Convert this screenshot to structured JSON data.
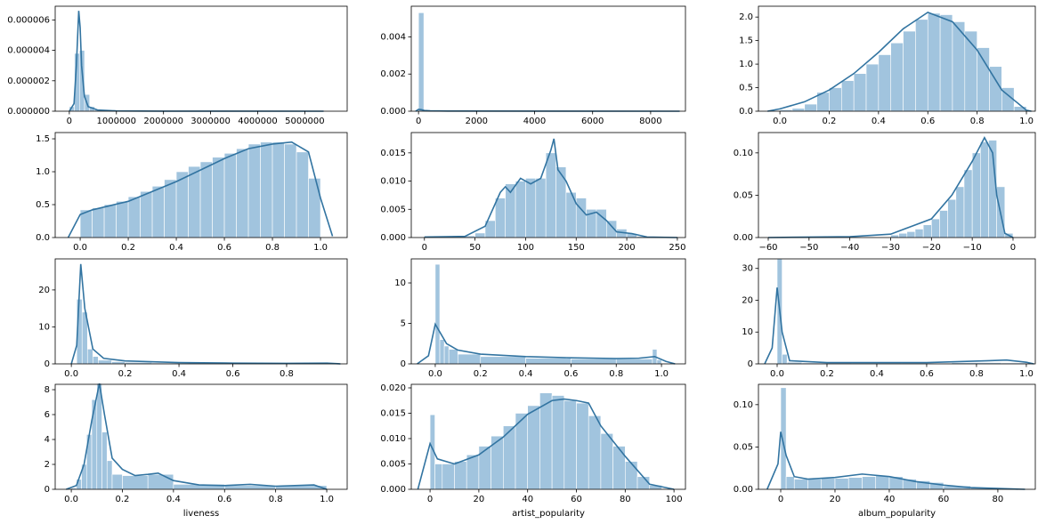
{
  "chart_data": [
    {
      "type": "histogram",
      "color": "#a1c4de",
      "line_color": "#3274a1",
      "bins": [
        0,
        108000,
        216000,
        324000,
        432000,
        540000,
        648000,
        756000,
        864000,
        972000,
        1080000
      ],
      "values": [
        3e-07,
        3.8e-06,
        4e-06,
        1.1e-06,
        3e-07,
        1e-07,
        5e-08,
        3e-08,
        2e-08,
        1e-08
      ],
      "kde_x": [
        0,
        100000,
        150000,
        200000,
        230000,
        260000,
        320000,
        400000,
        600000,
        1000000,
        2000000,
        5400000
      ],
      "kde_values": [
        0,
        5e-07,
        3e-06,
        6.6e-06,
        5.5e-06,
        3e-06,
        1e-06,
        3e-07,
        8e-08,
        2e-08,
        5e-09,
        0
      ],
      "xlim": [
        -300000,
        5900000
      ],
      "ylim": [
        0,
        6.9e-06
      ],
      "xticks": [
        0,
        1000000,
        2000000,
        3000000,
        4000000,
        5000000
      ],
      "yticks": [
        {
          "value": 0,
          "label": "0.000000"
        },
        {
          "value": 2e-06,
          "label": "0.000002"
        },
        {
          "value": 4e-06,
          "label": "0.000004"
        },
        {
          "value": 6e-06,
          "label": "0.000006"
        }
      ]
    },
    {
      "type": "histogram",
      "color": "#a1c4de",
      "line_color": "#3274a1",
      "bins": [
        0,
        184,
        368,
        552,
        736,
        920
      ],
      "values": [
        0.0053,
        3e-05,
        1e-05,
        5e-06,
        3e-06
      ],
      "kde_x": [
        -100,
        0,
        100,
        200,
        400,
        1000,
        9000
      ],
      "kde_values": [
        0,
        0.0001,
        8e-05,
        4e-05,
        2e-05,
        1e-05,
        0
      ],
      "xlim": [
        -250,
        9200
      ],
      "ylim": [
        0,
        0.00565
      ],
      "xticks": [
        0,
        2000,
        4000,
        6000,
        8000
      ],
      "yticks": [
        {
          "value": 0,
          "label": "0.000"
        },
        0.002,
        0.004
      ]
    },
    {
      "type": "histogram",
      "color": "#a1c4de",
      "line_color": "#3274a1",
      "bins": [
        0,
        0.05,
        0.1,
        0.15,
        0.2,
        0.25,
        0.3,
        0.35,
        0.4,
        0.45,
        0.5,
        0.55,
        0.6,
        0.65,
        0.7,
        0.75,
        0.8,
        0.85,
        0.9,
        0.95,
        1.0
      ],
      "values": [
        0.03,
        0.06,
        0.15,
        0.4,
        0.5,
        0.65,
        0.8,
        1.0,
        1.2,
        1.45,
        1.7,
        1.95,
        2.08,
        2.05,
        1.9,
        1.7,
        1.35,
        0.95,
        0.5,
        0.1
      ],
      "kde_x": [
        -0.05,
        0,
        0.1,
        0.2,
        0.3,
        0.4,
        0.5,
        0.6,
        0.7,
        0.8,
        0.9,
        1.0,
        1.02
      ],
      "kde_values": [
        0,
        0.05,
        0.2,
        0.45,
        0.8,
        1.25,
        1.75,
        2.1,
        1.9,
        1.3,
        0.45,
        0.02,
        0
      ],
      "xlim": [
        -0.087,
        1.036
      ],
      "ylim": [
        0,
        2.23
      ],
      "xticks": [
        {
          "value": 0,
          "label": "0.0"
        },
        0.2,
        0.4,
        0.6,
        0.8,
        {
          "value": 1,
          "label": "1.0"
        }
      ],
      "yticks": [
        {
          "value": 0,
          "label": "0.0"
        },
        0.5,
        {
          "value": 1,
          "label": "1.0"
        },
        1.5,
        {
          "value": 2,
          "label": "2.0"
        }
      ]
    },
    {
      "type": "histogram",
      "color": "#a1c4de",
      "line_color": "#3274a1",
      "bins": [
        0,
        0.05,
        0.1,
        0.15,
        0.2,
        0.25,
        0.3,
        0.35,
        0.4,
        0.45,
        0.5,
        0.55,
        0.6,
        0.65,
        0.7,
        0.75,
        0.8,
        0.85,
        0.9,
        0.95,
        1.0
      ],
      "values": [
        0.42,
        0.45,
        0.5,
        0.55,
        0.62,
        0.7,
        0.78,
        0.88,
        1.0,
        1.08,
        1.15,
        1.22,
        1.28,
        1.35,
        1.42,
        1.45,
        1.45,
        1.42,
        1.3,
        0.9
      ],
      "kde_x": [
        -0.05,
        0,
        0.05,
        0.2,
        0.4,
        0.6,
        0.7,
        0.8,
        0.88,
        0.95,
        1.0,
        1.05
      ],
      "kde_values": [
        0,
        0.35,
        0.42,
        0.55,
        0.85,
        1.2,
        1.35,
        1.42,
        1.45,
        1.3,
        0.6,
        0.02
      ],
      "xlim": [
        -0.104,
        1.111
      ],
      "ylim": [
        0,
        1.595
      ],
      "xticks": [
        {
          "value": 0,
          "label": "0.0"
        },
        0.2,
        0.4,
        0.6,
        0.8,
        {
          "value": 1,
          "label": "1.0"
        }
      ],
      "yticks": [
        {
          "value": 0,
          "label": "0.0"
        },
        0.5,
        {
          "value": 1,
          "label": "1.0"
        },
        1.5
      ]
    },
    {
      "type": "histogram",
      "color": "#a1c4de",
      "line_color": "#3274a1",
      "bins": [
        40,
        50,
        60,
        70,
        80,
        90,
        100,
        110,
        120,
        130,
        140,
        150,
        160,
        170,
        180,
        190,
        200,
        210,
        220
      ],
      "values": [
        0.0003,
        0.0008,
        0.003,
        0.007,
        0.0095,
        0.01,
        0.0105,
        0.0105,
        0.015,
        0.0125,
        0.008,
        0.007,
        0.005,
        0.005,
        0.003,
        0.0015,
        0.0007,
        0.0002
      ],
      "kde_x": [
        0,
        40,
        60,
        75,
        80,
        85,
        95,
        105,
        115,
        125,
        128,
        132,
        140,
        150,
        160,
        170,
        180,
        190,
        205,
        220,
        250
      ],
      "kde_values": [
        0.0001,
        0.0002,
        0.002,
        0.008,
        0.009,
        0.008,
        0.0105,
        0.0095,
        0.0105,
        0.0155,
        0.0175,
        0.012,
        0.01,
        0.006,
        0.004,
        0.0045,
        0.003,
        0.001,
        0.0007,
        0.0001,
        0
      ],
      "xlim": [
        -13,
        258
      ],
      "ylim": [
        0,
        0.0186
      ],
      "xticks": [
        0,
        50,
        100,
        150,
        200,
        250
      ],
      "yticks": [
        {
          "value": 0,
          "label": "0.000"
        },
        0.005,
        {
          "value": 0.01,
          "label": "0.010"
        },
        0.015
      ]
    },
    {
      "type": "histogram",
      "color": "#a1c4de",
      "line_color": "#3274a1",
      "bins": [
        -30,
        -28,
        -26,
        -24,
        -22,
        -20,
        -18,
        -16,
        -14,
        -12,
        -10,
        -8,
        -6,
        -4,
        -2,
        0
      ],
      "values": [
        0.003,
        0.005,
        0.007,
        0.01,
        0.015,
        0.022,
        0.032,
        0.045,
        0.06,
        0.08,
        0.1,
        0.113,
        0.115,
        0.06,
        0.005
      ],
      "kde_x": [
        -60,
        -40,
        -30,
        -20,
        -15,
        -10,
        -7,
        -5,
        -4,
        -2,
        0
      ],
      "kde_values": [
        0,
        0.001,
        0.004,
        0.022,
        0.05,
        0.09,
        0.118,
        0.1,
        0.05,
        0.005,
        0
      ],
      "xlim": [
        -62.4,
        5.46
      ],
      "ylim": [
        0,
        0.124
      ],
      "xticks": [
        {
          "value": -60,
          "label": "−60"
        },
        {
          "value": -50,
          "label": "−50"
        },
        {
          "value": -40,
          "label": "−40"
        },
        {
          "value": -30,
          "label": "−30"
        },
        {
          "value": -20,
          "label": "−20"
        },
        {
          "value": -10,
          "label": "−10"
        },
        0
      ],
      "yticks": [
        {
          "value": 0,
          "label": "0.00"
        },
        0.05,
        {
          "value": 0.1,
          "label": "0.10"
        }
      ]
    },
    {
      "type": "histogram",
      "color": "#a1c4de",
      "line_color": "#3274a1",
      "bins": [
        0,
        0.02,
        0.04,
        0.06,
        0.08,
        0.1,
        0.15,
        0.2,
        0.3,
        0.4,
        0.6,
        0.8,
        1.0
      ],
      "values": [
        0.2,
        17.5,
        14,
        4,
        2,
        1,
        0.6,
        0.4,
        0.25,
        0.15,
        0.12,
        0.15
      ],
      "kde_x": [
        0,
        0.02,
        0.035,
        0.05,
        0.08,
        0.12,
        0.2,
        0.4,
        0.6,
        0.8,
        0.95,
        1.0
      ],
      "kde_values": [
        0,
        5,
        27,
        15,
        4,
        1.5,
        0.8,
        0.35,
        0.2,
        0.15,
        0.2,
        0
      ],
      "xlim": [
        -0.06,
        1.025
      ],
      "ylim": [
        0,
        28.4
      ],
      "xticks": [
        {
          "value": 0,
          "label": "0.0"
        },
        0.2,
        0.4,
        0.6,
        0.8
      ],
      "yticks": [
        0,
        10,
        20
      ]
    },
    {
      "type": "histogram",
      "color": "#a1c4de",
      "line_color": "#3274a1",
      "bins": [
        0,
        0.02,
        0.04,
        0.06,
        0.1,
        0.2,
        0.4,
        0.6,
        0.8,
        0.96,
        0.98,
        1.0
      ],
      "values": [
        12.3,
        3,
        2.2,
        1.8,
        1.2,
        0.9,
        0.7,
        0.6,
        0.6,
        1.8,
        0.5
      ],
      "kde_x": [
        -0.08,
        -0.03,
        0,
        0.05,
        0.1,
        0.2,
        0.4,
        0.6,
        0.8,
        0.9,
        0.97,
        1.02,
        1.06
      ],
      "kde_values": [
        0,
        1,
        4.9,
        2.5,
        1.7,
        1.2,
        0.9,
        0.75,
        0.65,
        0.7,
        0.9,
        0.3,
        0
      ],
      "xlim": [
        -0.106,
        1.106
      ],
      "ylim": [
        0,
        12.97
      ],
      "xticks": [
        {
          "value": 0,
          "label": "0.0"
        },
        0.2,
        0.4,
        0.6,
        0.8,
        {
          "value": 1,
          "label": "1.0"
        }
      ],
      "yticks": [
        0,
        5,
        10
      ]
    },
    {
      "type": "histogram",
      "color": "#a1c4de",
      "line_color": "#3274a1",
      "bins": [
        0,
        0.02,
        0.04,
        0.1,
        0.3,
        0.5,
        0.7,
        0.9,
        1.0
      ],
      "values": [
        33,
        3,
        0.5,
        0.3,
        0.25,
        0.25,
        0.4,
        0.3
      ],
      "kde_x": [
        -0.05,
        -0.02,
        0,
        0.02,
        0.05,
        0.2,
        0.6,
        0.85,
        0.92,
        1.0,
        1.03
      ],
      "kde_values": [
        0,
        5,
        24,
        10,
        1,
        0.4,
        0.4,
        1,
        1.2,
        0.5,
        0
      ],
      "xlim": [
        -0.075,
        1.036
      ],
      "ylim": [
        0,
        33
      ],
      "xticks": [
        {
          "value": 0,
          "label": "0.0"
        },
        0.2,
        0.4,
        0.6,
        0.8,
        {
          "value": 1,
          "label": "1.0"
        }
      ],
      "yticks": [
        0,
        10,
        20,
        30
      ]
    },
    {
      "type": "histogram",
      "color": "#a1c4de",
      "line_color": "#3274a1",
      "xlabel": "liveness",
      "bins": [
        0,
        0.02,
        0.04,
        0.06,
        0.08,
        0.1,
        0.12,
        0.14,
        0.16,
        0.2,
        0.3,
        0.4,
        0.6,
        0.8,
        1.0
      ],
      "values": [
        0.1,
        0.8,
        2,
        4.4,
        7.2,
        8.5,
        4.6,
        2.3,
        1.2,
        1.1,
        1.2,
        0.4,
        0.3,
        0.3
      ],
      "kde_x": [
        -0.02,
        0.02,
        0.05,
        0.08,
        0.11,
        0.13,
        0.16,
        0.2,
        0.25,
        0.3,
        0.34,
        0.4,
        0.5,
        0.6,
        0.7,
        0.8,
        0.95,
        1.0
      ],
      "kde_values": [
        0,
        0.3,
        2,
        5.5,
        8.5,
        6,
        2.5,
        1.6,
        1.1,
        1.2,
        1.3,
        0.7,
        0.35,
        0.3,
        0.4,
        0.25,
        0.35,
        0
      ],
      "xlim": [
        -0.063,
        1.08
      ],
      "ylim": [
        0,
        8.43
      ],
      "xticks": [
        {
          "value": 0,
          "label": "0.0"
        },
        0.2,
        0.4,
        0.6,
        0.8,
        {
          "value": 1,
          "label": "1.0"
        }
      ],
      "yticks": [
        0,
        2,
        4,
        6,
        8
      ]
    },
    {
      "type": "histogram",
      "color": "#a1c4de",
      "line_color": "#3274a1",
      "xlabel": "artist_popularity",
      "bins": [
        0,
        2,
        5,
        10,
        15,
        20,
        25,
        30,
        35,
        40,
        45,
        50,
        55,
        60,
        65,
        70,
        75,
        80,
        85,
        90,
        95
      ],
      "values": [
        0.0147,
        0.005,
        0.005,
        0.0055,
        0.0068,
        0.0085,
        0.0105,
        0.0125,
        0.015,
        0.0165,
        0.019,
        0.0185,
        0.0175,
        0.017,
        0.0145,
        0.011,
        0.0085,
        0.0055,
        0.0025,
        0.0008
      ],
      "kde_x": [
        -5,
        0,
        3,
        10,
        20,
        30,
        40,
        50,
        55,
        60,
        65,
        70,
        80,
        90,
        100
      ],
      "kde_values": [
        0,
        0.009,
        0.006,
        0.005,
        0.0068,
        0.0103,
        0.0148,
        0.0175,
        0.0178,
        0.0175,
        0.017,
        0.0125,
        0.0065,
        0.001,
        0
      ],
      "xlim": [
        -7.7,
        104.7
      ],
      "ylim": [
        0,
        0.0207
      ],
      "xticks": [
        0,
        20,
        40,
        60,
        80,
        100
      ],
      "yticks": [
        {
          "value": 0,
          "label": "0.000"
        },
        0.005,
        {
          "value": 0.01,
          "label": "0.010"
        },
        0.015,
        {
          "value": 0.02,
          "label": "0.020"
        }
      ]
    },
    {
      "type": "histogram",
      "color": "#a1c4de",
      "line_color": "#3274a1",
      "xlabel": "album_popularity",
      "bins": [
        0,
        2,
        5,
        10,
        15,
        20,
        25,
        30,
        35,
        40,
        45,
        50,
        55,
        60,
        70,
        80,
        90
      ],
      "values": [
        0.12,
        0.015,
        0.012,
        0.012,
        0.013,
        0.013,
        0.014,
        0.015,
        0.016,
        0.015,
        0.012,
        0.01,
        0.008,
        0.004,
        0.002,
        0.0005
      ],
      "kde_x": [
        -5,
        -1,
        0,
        2,
        5,
        10,
        20,
        30,
        40,
        50,
        60,
        70,
        80,
        90
      ],
      "kde_values": [
        0,
        0.03,
        0.068,
        0.04,
        0.015,
        0.012,
        0.014,
        0.018,
        0.015,
        0.009,
        0.005,
        0.002,
        0.001,
        0
      ],
      "xlim": [
        -8.2,
        93.8
      ],
      "ylim": [
        0,
        0.124
      ],
      "xticks": [
        0,
        20,
        40,
        60,
        80
      ],
      "yticks": [
        {
          "value": 0,
          "label": "0.00"
        },
        0.05,
        {
          "value": 0.1,
          "label": "0.10"
        }
      ]
    }
  ]
}
